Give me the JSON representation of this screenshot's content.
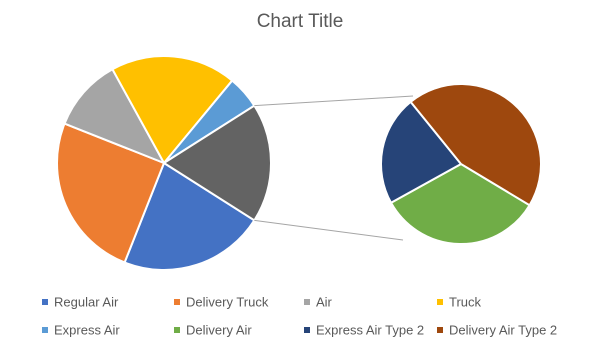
{
  "chart_data": {
    "type": "pie-of-pie",
    "title": "Chart Title",
    "categories": [
      "Regular Air",
      "Delivery Truck",
      "Air",
      "Truck",
      "Express Air",
      "Delivery Air",
      "Express Air Type 2",
      "Delivery Air Type 2"
    ],
    "values": [
      22,
      25,
      11,
      19,
      5,
      6,
      4,
      8
    ],
    "colors": [
      "#4472c4",
      "#ed7d31",
      "#a5a5a5",
      "#ffc000",
      "#5b9bd5",
      "#70ad47",
      "#264478",
      "#9e480e"
    ]
  }
}
